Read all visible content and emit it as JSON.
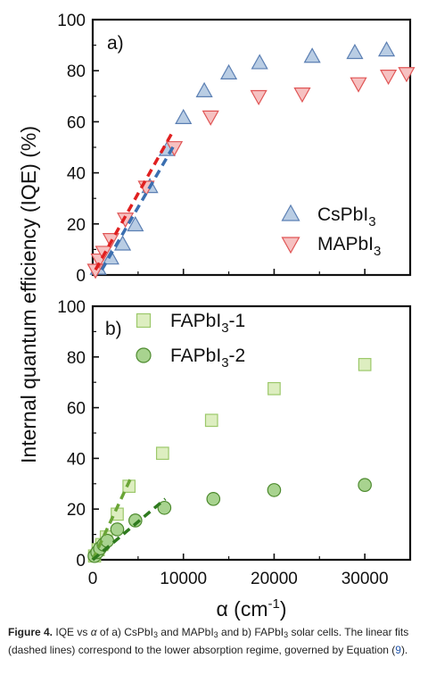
{
  "chart_data": [
    {
      "panel": "a)",
      "type": "scatter",
      "xlim": [
        0,
        35000
      ],
      "ylim": [
        0,
        100
      ],
      "y_ticks": [
        "0",
        "20",
        "40",
        "60",
        "80",
        "100"
      ],
      "legend_position": "bottom-right",
      "series": [
        {
          "name_main": "CsPbI",
          "name_sub": "3",
          "marker": "triangle-up",
          "fill": "#b9cde4",
          "stroke": "#5b7fb3",
          "points": [
            [
              600,
              2.5
            ],
            [
              2000,
              6.5
            ],
            [
              3300,
              12
            ],
            [
              4700,
              19.5
            ],
            [
              6300,
              34.5
            ],
            [
              8200,
              49
            ],
            [
              10000,
              61.5
            ],
            [
              12300,
              72
            ],
            [
              15000,
              79
            ],
            [
              18400,
              83
            ],
            [
              24200,
              85.5
            ],
            [
              28900,
              87
            ],
            [
              32400,
              88
            ]
          ]
        },
        {
          "name_main": "MAPbI",
          "name_sub": "3",
          "marker": "triangle-down",
          "fill": "#f6c1c1",
          "stroke": "#e05555",
          "points": [
            [
              300,
              2
            ],
            [
              700,
              6
            ],
            [
              1200,
              9
            ],
            [
              2000,
              14
            ],
            [
              3600,
              22
            ],
            [
              5900,
              34.5
            ],
            [
              9000,
              50
            ],
            [
              13000,
              62
            ],
            [
              18300,
              70
            ],
            [
              23100,
              71
            ],
            [
              29300,
              75
            ],
            [
              32600,
              78
            ],
            [
              34600,
              79
            ]
          ]
        }
      ],
      "fits": [
        {
          "series": "CsPbI3",
          "color": "#3b6fb0",
          "from": [
            1000,
            2
          ],
          "to": [
            9000,
            51
          ]
        },
        {
          "series": "MAPbI3",
          "color": "#e02020",
          "from": [
            300,
            2
          ],
          "to": [
            8800,
            56
          ]
        }
      ]
    },
    {
      "panel": "b)",
      "type": "scatter",
      "xlim": [
        0,
        35000
      ],
      "ylim": [
        0,
        100
      ],
      "y_ticks": [
        "0",
        "20",
        "40",
        "60",
        "80",
        "100"
      ],
      "x_ticks": [
        "0",
        "10000",
        "20000",
        "30000"
      ],
      "xlabel_main": "α (cm",
      "xlabel_sup": "-1",
      "xlabel_end": ")",
      "legend_position": "top-left",
      "series": [
        {
          "name_main": "FAPbI",
          "name_sub": "3",
          "name_end": "-1",
          "marker": "square",
          "fill": "#ddeec0",
          "stroke": "#9cc86a",
          "points": [
            [
              200,
              1.5
            ],
            [
              600,
              4
            ],
            [
              1000,
              6
            ],
            [
              1500,
              9
            ],
            [
              2700,
              18
            ],
            [
              4000,
              29
            ],
            [
              7700,
              42
            ],
            [
              13100,
              55
            ],
            [
              20000,
              67.5
            ],
            [
              30000,
              77
            ]
          ]
        },
        {
          "name_main": "FAPbI",
          "name_sub": "3",
          "name_end": "-2",
          "marker": "circle",
          "fill": "#a8d38f",
          "stroke": "#4d8a2e",
          "points": [
            [
              200,
              1.5
            ],
            [
              500,
              3
            ],
            [
              800,
              4.5
            ],
            [
              1200,
              6
            ],
            [
              1600,
              7.5
            ],
            [
              2700,
              12
            ],
            [
              4700,
              15.5
            ],
            [
              7900,
              20.5
            ],
            [
              13300,
              24
            ],
            [
              20000,
              27.5
            ],
            [
              30000,
              29.5
            ]
          ]
        }
      ],
      "fits": [
        {
          "series": "FAPbI3-1",
          "color": "#6aa536",
          "from": [
            0,
            0
          ],
          "to": [
            4300,
            33
          ]
        },
        {
          "series": "FAPbI3-2",
          "color": "#2e7a1e",
          "from": [
            0,
            0
          ],
          "to": [
            8000,
            24
          ]
        }
      ]
    }
  ],
  "ylabel": "Internal quantum efficiency (IQE) (%)",
  "caption": {
    "label": "Figure 4.",
    "t1": "IQE vs",
    "alpha": "α",
    "t2": "of a) CsPbI",
    "sub1": "3",
    "t3": "and MAPbI",
    "sub2": "3",
    "t4": "and b) FAPbI",
    "sub3": "3",
    "t5": "solar cells. The linear fits (dashed lines) correspond to the lower absorption regime, governed by Equation (",
    "ref": "9",
    "t6": ")."
  }
}
